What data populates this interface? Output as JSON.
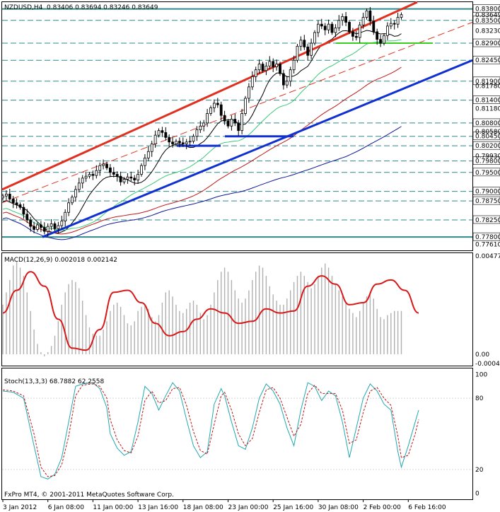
{
  "header": {
    "symbol": "NZDUSD,H4",
    "ohlc": "0.83406 0.83694 0.83246 0.83649"
  },
  "footer": {
    "copyright": "FxPro MT4, © 2001-2011 MetaQuotes Software Corp."
  },
  "colors": {
    "candle": "#000000",
    "hline": "#2e8b8b",
    "channel_red": "#e03020",
    "channel_blue": "#1030d0",
    "ma_black": "#000000",
    "ma_green": "#3cc878",
    "ma_red": "#c01818",
    "ma_navy": "#10189a",
    "support_green": "#38d020",
    "macd_hist": "#b0b0b0",
    "macd_signal": "#d81818",
    "stoch_main": "#20a8b0",
    "stoch_signal": "#c01010"
  },
  "chart_data": [
    {
      "type": "candlestick",
      "panel": "price",
      "title": "NZDUSD,H4",
      "ylim": [
        0.7745,
        0.8398
      ],
      "price_levels": [
        {
          "label": "0.83800",
          "value": 0.838,
          "line": true
        },
        {
          "label": "0.83500",
          "value": 0.835,
          "line": true
        },
        {
          "label": "0.82900",
          "value": 0.829,
          "line": true
        },
        {
          "label": "0.82450",
          "value": 0.8245,
          "line": true
        },
        {
          "label": "0.81900",
          "value": 0.819,
          "line": true
        },
        {
          "label": "0.81400",
          "value": 0.814,
          "line": true
        },
        {
          "label": "0.80800",
          "value": 0.808,
          "line": true
        },
        {
          "label": "0.80450",
          "value": 0.8045,
          "line": true
        },
        {
          "label": "0.80200",
          "value": 0.802,
          "line": true
        },
        {
          "label": "0.79800",
          "value": 0.798,
          "line": true
        },
        {
          "label": "0.79500",
          "value": 0.795,
          "line": true
        },
        {
          "label": "0.79000",
          "value": 0.79,
          "line": true
        },
        {
          "label": "0.78750",
          "value": 0.7875,
          "line": true
        },
        {
          "label": "0.78250",
          "value": 0.7825,
          "line": true
        },
        {
          "label": "0.77800",
          "value": 0.778,
          "line": true
        }
      ],
      "tick_labels": [
        {
          "label": "0.83649",
          "value": 0.83649
        },
        {
          "label": "0.83230",
          "value": 0.8323
        },
        {
          "label": "0.81780",
          "value": 0.8178
        },
        {
          "label": "0.81180",
          "value": 0.8118
        },
        {
          "label": "0.80580",
          "value": 0.8058
        },
        {
          "label": "0.79930",
          "value": 0.7993
        },
        {
          "label": "0.77610",
          "value": 0.7761
        }
      ],
      "closes": [
        0.7888,
        0.7893,
        0.788,
        0.787,
        0.7865,
        0.7858,
        0.784,
        0.7825,
        0.7808,
        0.78,
        0.7812,
        0.7805,
        0.7795,
        0.7808,
        0.7815,
        0.7802,
        0.781,
        0.7822,
        0.7845,
        0.787,
        0.7885,
        0.7905,
        0.7922,
        0.7935,
        0.794,
        0.7945,
        0.7942,
        0.7955,
        0.7968,
        0.7972,
        0.7962,
        0.795,
        0.7945,
        0.794,
        0.7925,
        0.7932,
        0.7938,
        0.7935,
        0.793,
        0.7945,
        0.7968,
        0.7988,
        0.8005,
        0.8025,
        0.8048,
        0.806,
        0.8055,
        0.8042,
        0.803,
        0.8025,
        0.8032,
        0.8028,
        0.8025,
        0.803,
        0.8032,
        0.8045,
        0.8062,
        0.8072,
        0.808,
        0.8105,
        0.812,
        0.8132,
        0.8128,
        0.81,
        0.8085,
        0.8072,
        0.809,
        0.808,
        0.806,
        0.8105,
        0.8145,
        0.8175,
        0.8202,
        0.822,
        0.8235,
        0.8218,
        0.823,
        0.8242,
        0.8228,
        0.8235,
        0.821,
        0.818,
        0.819,
        0.822,
        0.8245,
        0.8282,
        0.8298,
        0.828,
        0.8258,
        0.829,
        0.8318,
        0.834,
        0.8335,
        0.8325,
        0.834,
        0.8318,
        0.833,
        0.835,
        0.836,
        0.8345,
        0.832,
        0.8308,
        0.8305,
        0.8338,
        0.8358,
        0.8375,
        0.8348,
        0.832,
        0.83,
        0.829,
        0.831,
        0.8335,
        0.8342,
        0.834,
        0.8358,
        0.8365
      ]
    },
    {
      "type": "line",
      "panel": "macd",
      "title": "MACD(12,26,9) 0.002018 0.002142",
      "ylim": [
        -0.00055,
        0.0049
      ],
      "tick_labels": [
        {
          "label": "0.00477",
          "value": 0.00477
        },
        {
          "label": "0.00",
          "value": 0.0
        },
        {
          "label": "-0.00044",
          "value": -0.00044
        }
      ],
      "signal_points": [
        [
          0,
          0.002
        ],
        [
          4,
          0.0031
        ],
        [
          8,
          0.004
        ],
        [
          12,
          0.0033
        ],
        [
          16,
          0.0017
        ],
        [
          20,
          0.0003
        ],
        [
          24,
          0.0002
        ],
        [
          28,
          0.0012
        ],
        [
          32,
          0.003
        ],
        [
          36,
          0.0031
        ],
        [
          40,
          0.0025
        ],
        [
          44,
          0.0015
        ],
        [
          48,
          0.0009
        ],
        [
          52,
          0.0011
        ],
        [
          56,
          0.0017
        ],
        [
          60,
          0.0022
        ],
        [
          64,
          0.002
        ],
        [
          68,
          0.0015
        ],
        [
          72,
          0.0016
        ],
        [
          76,
          0.0022
        ],
        [
          80,
          0.002
        ],
        [
          84,
          0.0021
        ],
        [
          88,
          0.0033
        ],
        [
          92,
          0.0038
        ],
        [
          96,
          0.0034
        ],
        [
          100,
          0.0024
        ],
        [
          104,
          0.0025
        ],
        [
          108,
          0.0034
        ],
        [
          112,
          0.0036
        ],
        [
          116,
          0.0031
        ],
        [
          120,
          0.002
        ]
      ],
      "histogram": [
        0.0024,
        0.003,
        0.0036,
        0.0043,
        0.0045,
        0.0042,
        0.0038,
        0.003,
        0.0021,
        0.0012,
        0.0005,
        0.0001,
        -0.0001,
        0.0001,
        0.0004,
        0.0009,
        0.0016,
        0.0024,
        0.003,
        0.0034,
        0.0036,
        0.0035,
        0.0032,
        0.0026,
        0.0019,
        0.0013,
        0.001,
        0.0009,
        0.0009,
        0.0012,
        0.0016,
        0.0021,
        0.0024,
        0.0025,
        0.0023,
        0.0019,
        0.0015,
        0.0014,
        0.0016,
        0.0021,
        0.0023,
        0.0024,
        0.0022,
        0.0018,
        0.0016,
        0.0019,
        0.0025,
        0.003,
        0.0031,
        0.0028,
        0.0024,
        0.0021,
        0.002,
        0.0022,
        0.0025,
        0.0026,
        0.0024,
        0.002,
        0.0017,
        0.0019,
        0.0024,
        0.003,
        0.0036,
        0.004,
        0.0042,
        0.004,
        0.0036,
        0.0031,
        0.0027,
        0.0025,
        0.0027,
        0.0031,
        0.0036,
        0.004,
        0.0043,
        0.0042,
        0.0038,
        0.0033,
        0.0029,
        0.0026,
        0.0024,
        0.0024,
        0.0027,
        0.0031,
        0.0035,
        0.0038,
        0.004,
        0.0038,
        0.0035,
        0.0032,
        0.0034,
        0.0038,
        0.0042,
        0.0044,
        0.0042,
        0.0038,
        0.0034,
        0.0031,
        0.0028,
        0.0025,
        0.0022,
        0.002,
        0.0018,
        0.0021,
        0.0025,
        0.0028,
        0.003,
        0.0027,
        0.0022,
        0.0018,
        0.0017,
        0.0019,
        0.002,
        0.0021,
        0.0021,
        0.0021
      ]
    },
    {
      "type": "line",
      "panel": "stochastic",
      "title": "Stoch(13,3,3) 68.7882 62.2558",
      "ylim": [
        -5,
        105
      ],
      "tick_labels": [
        {
          "label": "100",
          "value": 100
        },
        {
          "label": "80",
          "value": 80
        },
        {
          "label": "20",
          "value": 20
        },
        {
          "label": "0",
          "value": 0
        }
      ],
      "main_points": [
        [
          0,
          86
        ],
        [
          3,
          85
        ],
        [
          6,
          80
        ],
        [
          9,
          40
        ],
        [
          11,
          14
        ],
        [
          13,
          12
        ],
        [
          15,
          16
        ],
        [
          17,
          30
        ],
        [
          19,
          60
        ],
        [
          21,
          90
        ],
        [
          23,
          92
        ],
        [
          26,
          93
        ],
        [
          28,
          88
        ],
        [
          30,
          72
        ],
        [
          31,
          50
        ],
        [
          33,
          38
        ],
        [
          35,
          32
        ],
        [
          37,
          35
        ],
        [
          39,
          60
        ],
        [
          41,
          90
        ],
        [
          43,
          84
        ],
        [
          45,
          70
        ],
        [
          47,
          82
        ],
        [
          49,
          93
        ],
        [
          51,
          86
        ],
        [
          53,
          62
        ],
        [
          55,
          40
        ],
        [
          57,
          30
        ],
        [
          59,
          35
        ],
        [
          61,
          75
        ],
        [
          63,
          88
        ],
        [
          64,
          82
        ],
        [
          66,
          60
        ],
        [
          68,
          40
        ],
        [
          70,
          37
        ],
        [
          72,
          55
        ],
        [
          74,
          80
        ],
        [
          76,
          92
        ],
        [
          78,
          86
        ],
        [
          80,
          75
        ],
        [
          82,
          55
        ],
        [
          84,
          40
        ],
        [
          86,
          70
        ],
        [
          88,
          93
        ],
        [
          90,
          90
        ],
        [
          92,
          78
        ],
        [
          94,
          86
        ],
        [
          96,
          82
        ],
        [
          98,
          60
        ],
        [
          100,
          30
        ],
        [
          102,
          55
        ],
        [
          104,
          80
        ],
        [
          106,
          92
        ],
        [
          108,
          86
        ],
        [
          110,
          75
        ],
        [
          112,
          70
        ],
        [
          114,
          35
        ],
        [
          115,
          22
        ],
        [
          117,
          40
        ],
        [
          119,
          60
        ],
        [
          120,
          70
        ]
      ],
      "signal_points": [
        [
          0,
          87
        ],
        [
          3,
          86
        ],
        [
          6,
          82
        ],
        [
          9,
          50
        ],
        [
          11,
          22
        ],
        [
          13,
          14
        ],
        [
          15,
          15
        ],
        [
          17,
          24
        ],
        [
          19,
          48
        ],
        [
          21,
          82
        ],
        [
          23,
          91
        ],
        [
          26,
          92
        ],
        [
          28,
          90
        ],
        [
          30,
          80
        ],
        [
          31,
          62
        ],
        [
          33,
          45
        ],
        [
          35,
          36
        ],
        [
          37,
          34
        ],
        [
          39,
          48
        ],
        [
          41,
          78
        ],
        [
          43,
          86
        ],
        [
          45,
          76
        ],
        [
          47,
          78
        ],
        [
          49,
          88
        ],
        [
          51,
          89
        ],
        [
          53,
          74
        ],
        [
          55,
          52
        ],
        [
          57,
          36
        ],
        [
          59,
          33
        ],
        [
          61,
          58
        ],
        [
          63,
          82
        ],
        [
          64,
          85
        ],
        [
          66,
          70
        ],
        [
          68,
          50
        ],
        [
          70,
          40
        ],
        [
          72,
          46
        ],
        [
          74,
          68
        ],
        [
          76,
          87
        ],
        [
          78,
          89
        ],
        [
          80,
          80
        ],
        [
          82,
          64
        ],
        [
          84,
          48
        ],
        [
          86,
          58
        ],
        [
          88,
          84
        ],
        [
          90,
          91
        ],
        [
          92,
          84
        ],
        [
          94,
          84
        ],
        [
          96,
          84
        ],
        [
          98,
          70
        ],
        [
          100,
          42
        ],
        [
          102,
          45
        ],
        [
          104,
          68
        ],
        [
          106,
          86
        ],
        [
          108,
          89
        ],
        [
          110,
          80
        ],
        [
          112,
          74
        ],
        [
          114,
          48
        ],
        [
          115,
          30
        ],
        [
          117,
          32
        ],
        [
          119,
          50
        ],
        [
          120,
          62
        ]
      ]
    }
  ],
  "time_axis": {
    "labels": [
      {
        "label": "3 Jan 2012",
        "bar": 0
      },
      {
        "label": "6 Jan 08:00",
        "bar": 13
      },
      {
        "label": "11 Jan 00:00",
        "bar": 26
      },
      {
        "label": "13 Jan 16:00",
        "bar": 39
      },
      {
        "label": "18 Jan 08:00",
        "bar": 52
      },
      {
        "label": "23 Jan 00:00",
        "bar": 65
      },
      {
        "label": "25 Jan 16:00",
        "bar": 78
      },
      {
        "label": "30 Jan 08:00",
        "bar": 91
      },
      {
        "label": "2 Feb 00:00",
        "bar": 104
      },
      {
        "label": "6 Feb 16:00",
        "bar": 117
      }
    ]
  }
}
